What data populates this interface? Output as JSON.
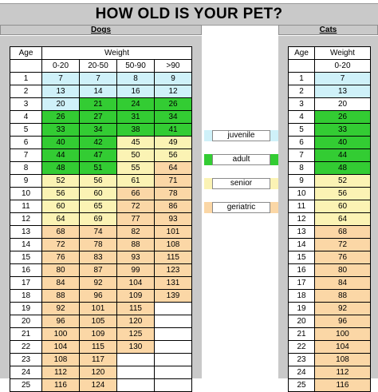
{
  "title": "HOW OLD IS YOUR PET?",
  "dogs": {
    "heading": "Dogs",
    "age_label": "Age",
    "weight_label": "Weight",
    "weight_classes": [
      "0-20",
      "20-50",
      "50-90",
      ">90"
    ],
    "rows": [
      [
        "1",
        "7",
        "7",
        "8",
        "9"
      ],
      [
        "2",
        "13",
        "14",
        "16",
        "12"
      ],
      [
        "3",
        "20",
        "21",
        "24",
        "26"
      ],
      [
        "4",
        "26",
        "27",
        "31",
        "34"
      ],
      [
        "5",
        "33",
        "34",
        "38",
        "41"
      ],
      [
        "6",
        "40",
        "42",
        "45",
        "49"
      ],
      [
        "7",
        "44",
        "47",
        "50",
        "56"
      ],
      [
        "8",
        "48",
        "51",
        "55",
        "64"
      ],
      [
        "9",
        "52",
        "56",
        "61",
        "71"
      ],
      [
        "10",
        "56",
        "60",
        "66",
        "78"
      ],
      [
        "11",
        "60",
        "65",
        "72",
        "86"
      ],
      [
        "12",
        "64",
        "69",
        "77",
        "93"
      ],
      [
        "13",
        "68",
        "74",
        "82",
        "101"
      ],
      [
        "14",
        "72",
        "78",
        "88",
        "108"
      ],
      [
        "15",
        "76",
        "83",
        "93",
        "115"
      ],
      [
        "16",
        "80",
        "87",
        "99",
        "123"
      ],
      [
        "17",
        "84",
        "92",
        "104",
        "131"
      ],
      [
        "18",
        "88",
        "96",
        "109",
        "139"
      ],
      [
        "19",
        "92",
        "101",
        "115",
        ""
      ],
      [
        "20",
        "96",
        "105",
        "120",
        ""
      ],
      [
        "21",
        "100",
        "109",
        "125",
        ""
      ],
      [
        "22",
        "104",
        "115",
        "130",
        ""
      ],
      [
        "23",
        "108",
        "117",
        "",
        ""
      ],
      [
        "24",
        "112",
        "120",
        "",
        ""
      ],
      [
        "25",
        "116",
        "124",
        "",
        ""
      ]
    ],
    "stages": [
      [
        "w",
        "b",
        "b",
        "b",
        "b"
      ],
      [
        "w",
        "b",
        "b",
        "b",
        "b"
      ],
      [
        "w",
        "b",
        "g",
        "g",
        "g"
      ],
      [
        "w",
        "g",
        "g",
        "g",
        "g"
      ],
      [
        "w",
        "g",
        "g",
        "g",
        "g"
      ],
      [
        "w",
        "g",
        "g",
        "y",
        "y"
      ],
      [
        "w",
        "g",
        "g",
        "y",
        "y"
      ],
      [
        "w",
        "g",
        "g",
        "y",
        "o"
      ],
      [
        "w",
        "y",
        "y",
        "y",
        "o"
      ],
      [
        "w",
        "y",
        "y",
        "o",
        "o"
      ],
      [
        "w",
        "y",
        "y",
        "o",
        "o"
      ],
      [
        "w",
        "y",
        "y",
        "o",
        "o"
      ],
      [
        "w",
        "o",
        "o",
        "o",
        "o"
      ],
      [
        "w",
        "o",
        "o",
        "o",
        "o"
      ],
      [
        "w",
        "o",
        "o",
        "o",
        "o"
      ],
      [
        "w",
        "o",
        "o",
        "o",
        "o"
      ],
      [
        "w",
        "o",
        "o",
        "o",
        "o"
      ],
      [
        "w",
        "o",
        "o",
        "o",
        "o"
      ],
      [
        "w",
        "o",
        "o",
        "o",
        "w"
      ],
      [
        "w",
        "o",
        "o",
        "o",
        "w"
      ],
      [
        "w",
        "o",
        "o",
        "o",
        "w"
      ],
      [
        "w",
        "o",
        "o",
        "o",
        "w"
      ],
      [
        "w",
        "o",
        "o",
        "w",
        "w"
      ],
      [
        "w",
        "o",
        "o",
        "w",
        "w"
      ],
      [
        "w",
        "o",
        "o",
        "w",
        "w"
      ]
    ]
  },
  "cats": {
    "heading": "Cats",
    "age_label": "Age",
    "weight_label": "Weight",
    "weight_classes": [
      "0-20"
    ],
    "rows": [
      [
        "1",
        "7"
      ],
      [
        "2",
        "13"
      ],
      [
        "3",
        "20"
      ],
      [
        "4",
        "26"
      ],
      [
        "5",
        "33"
      ],
      [
        "6",
        "40"
      ],
      [
        "7",
        "44"
      ],
      [
        "8",
        "48"
      ],
      [
        "9",
        "52"
      ],
      [
        "10",
        "56"
      ],
      [
        "11",
        "60"
      ],
      [
        "12",
        "64"
      ],
      [
        "13",
        "68"
      ],
      [
        "14",
        "72"
      ],
      [
        "15",
        "76"
      ],
      [
        "16",
        "80"
      ],
      [
        "17",
        "84"
      ],
      [
        "18",
        "88"
      ],
      [
        "19",
        "92"
      ],
      [
        "20",
        "96"
      ],
      [
        "21",
        "100"
      ],
      [
        "22",
        "104"
      ],
      [
        "23",
        "108"
      ],
      [
        "24",
        "112"
      ],
      [
        "25",
        "116"
      ]
    ],
    "stages": [
      [
        "w",
        "b"
      ],
      [
        "w",
        "b"
      ],
      [
        "w",
        "w"
      ],
      [
        "w",
        "g"
      ],
      [
        "w",
        "g"
      ],
      [
        "w",
        "g"
      ],
      [
        "w",
        "g"
      ],
      [
        "w",
        "g"
      ],
      [
        "w",
        "y"
      ],
      [
        "w",
        "y"
      ],
      [
        "w",
        "y"
      ],
      [
        "w",
        "y"
      ],
      [
        "w",
        "o"
      ],
      [
        "w",
        "o"
      ],
      [
        "w",
        "o"
      ],
      [
        "w",
        "o"
      ],
      [
        "w",
        "o"
      ],
      [
        "w",
        "o"
      ],
      [
        "w",
        "o"
      ],
      [
        "w",
        "o"
      ],
      [
        "w",
        "o"
      ],
      [
        "w",
        "o"
      ],
      [
        "w",
        "o"
      ],
      [
        "w",
        "o"
      ],
      [
        "w",
        "o"
      ]
    ]
  },
  "legend": [
    {
      "label": "juvenile",
      "color": "#cff1f9"
    },
    {
      "label": "adult",
      "color": "#33cc33"
    },
    {
      "label": "senior",
      "color": "#fbf3b4"
    },
    {
      "label": "geriatric",
      "color": "#fbd7a6"
    }
  ],
  "colors": {
    "header_gray": "#c9c9c9",
    "juvenile": "#cff1f9",
    "adult": "#33cc33",
    "senior": "#fbf3b4",
    "geriatric": "#fbd7a6"
  }
}
